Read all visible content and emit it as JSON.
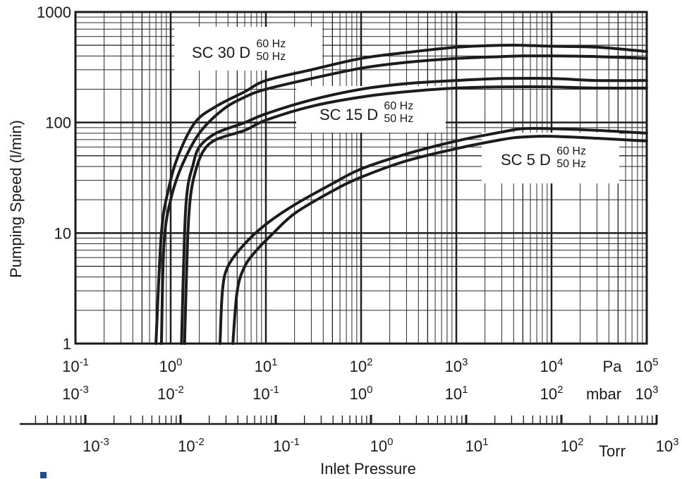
{
  "chart_data": {
    "type": "line",
    "ylabel": "Pumping Speed (l/min)",
    "xlabel": "Inlet Pressure",
    "y_scale": "log",
    "ylim": [
      1,
      1000
    ],
    "y_ticks": [
      "1",
      "10",
      "100",
      "1000"
    ],
    "x_scale": "log",
    "xlim_Pa": [
      0.1,
      100000
    ],
    "axes": [
      {
        "unit": "Pa",
        "base": "10",
        "exponents": [
          "-1",
          "0",
          "1",
          "2",
          "3",
          "4",
          "5"
        ]
      },
      {
        "unit": "mbar",
        "base": "10",
        "exponents": [
          "-3",
          "-2",
          "-1",
          "0",
          "1",
          "2",
          "3"
        ]
      },
      {
        "unit": "Torr",
        "base": "10",
        "exponents": [
          "-3",
          "-2",
          "-1",
          "0",
          "1",
          "2",
          "3"
        ]
      }
    ],
    "grid": true,
    "series": [
      {
        "group": "SC 30 D",
        "freq": "60 Hz",
        "x_Pa": [
          0.7,
          0.8,
          0.95,
          1.2,
          1.8,
          3,
          6,
          10,
          30,
          100,
          300,
          1000,
          3000,
          5000,
          10000,
          30000,
          100000
        ],
        "y": [
          1,
          10,
          25,
          50,
          100,
          140,
          190,
          240,
          300,
          380,
          430,
          480,
          500,
          500,
          490,
          480,
          440
        ]
      },
      {
        "group": "SC 30 D",
        "freq": "50 Hz",
        "x_Pa": [
          0.8,
          0.85,
          1.0,
          1.3,
          2,
          3.5,
          6,
          10,
          30,
          100,
          300,
          1000,
          3000,
          5000,
          10000,
          30000,
          100000
        ],
        "y": [
          1,
          8,
          20,
          40,
          80,
          130,
          170,
          200,
          250,
          310,
          350,
          380,
          395,
          400,
          400,
          395,
          380
        ]
      },
      {
        "group": "SC 15 D",
        "freq": "60 Hz",
        "x_Pa": [
          1.3,
          1.4,
          1.5,
          1.7,
          2,
          3,
          6,
          10,
          30,
          100,
          300,
          1000,
          3000,
          10000,
          30000,
          100000
        ],
        "y": [
          1,
          10,
          25,
          40,
          60,
          80,
          100,
          120,
          160,
          200,
          225,
          240,
          250,
          250,
          240,
          240
        ]
      },
      {
        "group": "SC 15 D",
        "freq": "50 Hz",
        "x_Pa": [
          1.4,
          1.5,
          1.6,
          1.8,
          2.2,
          3,
          6,
          10,
          30,
          100,
          300,
          1000,
          3000,
          10000,
          30000,
          100000
        ],
        "y": [
          1,
          8,
          20,
          35,
          55,
          70,
          85,
          105,
          140,
          170,
          190,
          205,
          210,
          210,
          205,
          205
        ]
      },
      {
        "group": "SC 5 D",
        "freq": "60 Hz",
        "x_Pa": [
          3.3,
          3.5,
          4,
          6,
          10,
          20,
          50,
          100,
          300,
          1000,
          3000,
          5000,
          10000,
          30000,
          100000
        ],
        "y": [
          1,
          3,
          5,
          8,
          12,
          18,
          28,
          38,
          52,
          68,
          82,
          88,
          88,
          85,
          80
        ]
      },
      {
        "group": "SC 5 D",
        "freq": "50 Hz",
        "x_Pa": [
          4.5,
          5,
          6,
          8,
          12,
          20,
          50,
          100,
          300,
          1000,
          3000,
          5000,
          10000,
          30000,
          100000
        ],
        "y": [
          1,
          3,
          5,
          7,
          10,
          15,
          24,
          32,
          45,
          58,
          70,
          74,
          75,
          72,
          68
        ]
      }
    ],
    "annotations": [
      {
        "model": "SC 30 D",
        "line1": "60 Hz",
        "line2": "50 Hz"
      },
      {
        "model": "SC 15 D",
        "line1": "60 Hz",
        "line2": "50 Hz"
      },
      {
        "model": "SC 5 D",
        "line1": "60 Hz",
        "line2": "50 Hz"
      }
    ]
  }
}
